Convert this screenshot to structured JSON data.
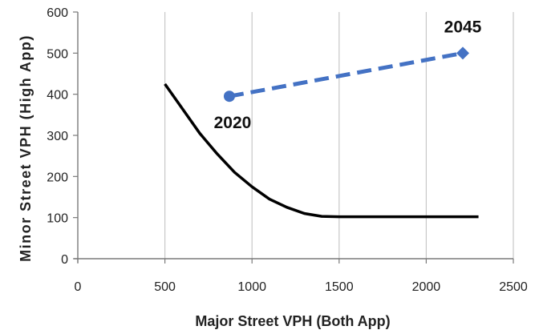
{
  "chart_data": {
    "type": "line",
    "title": "",
    "xlabel": "Major Street VPH (Both App)",
    "ylabel": "Minor Street VPH (High App)",
    "xlim": [
      0,
      2500
    ],
    "ylim": [
      0,
      600
    ],
    "xticks": [
      0,
      500,
      1000,
      1500,
      2000,
      2500
    ],
    "yticks": [
      0,
      100,
      200,
      300,
      400,
      500,
      600
    ],
    "grid": "vertical",
    "legend": "none",
    "series": [
      {
        "style": "solid",
        "color": "#000000",
        "points": [
          {
            "x": 500,
            "y": 425
          },
          {
            "x": 600,
            "y": 365
          },
          {
            "x": 700,
            "y": 305
          },
          {
            "x": 800,
            "y": 255
          },
          {
            "x": 900,
            "y": 210
          },
          {
            "x": 1000,
            "y": 175
          },
          {
            "x": 1100,
            "y": 145
          },
          {
            "x": 1200,
            "y": 125
          },
          {
            "x": 1300,
            "y": 110
          },
          {
            "x": 1400,
            "y": 103
          },
          {
            "x": 1500,
            "y": 102
          },
          {
            "x": 2300,
            "y": 102
          }
        ]
      },
      {
        "style": "dashed",
        "color": "#4472C4",
        "points": [
          {
            "x": 870,
            "y": 395,
            "label": "2020",
            "marker": "circle"
          },
          {
            "x": 2210,
            "y": 500,
            "label": "2045",
            "marker": "diamond"
          }
        ]
      }
    ]
  }
}
